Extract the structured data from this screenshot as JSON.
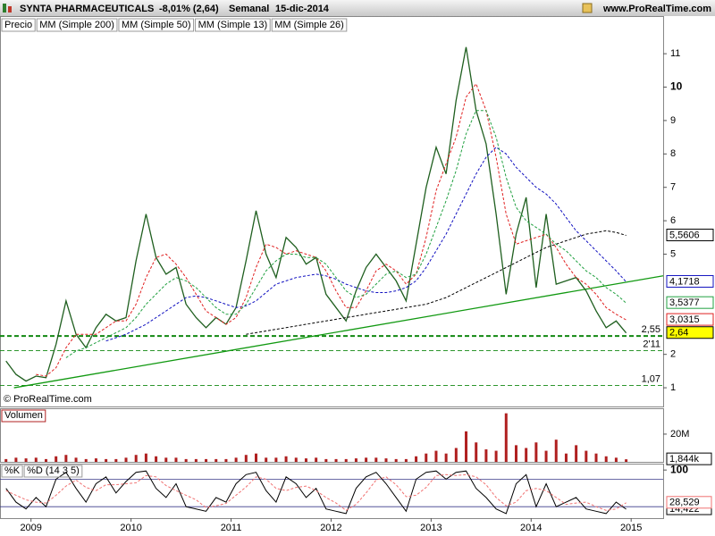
{
  "header": {
    "title": "SYNTA PHARMACEUTICALS",
    "change": "-8,01% (2,64)",
    "period": "Semanal",
    "date": "15-dic-2014",
    "site": "www.ProRealTime.com"
  },
  "chart_data": [
    {
      "type": "line",
      "watermark": "© ProRealTime.com",
      "x": [
        2008.75,
        2008.85,
        2008.95,
        2009.05,
        2009.15,
        2009.25,
        2009.35,
        2009.45,
        2009.55,
        2009.65,
        2009.75,
        2009.85,
        2009.95,
        2010.05,
        2010.15,
        2010.25,
        2010.35,
        2010.45,
        2010.55,
        2010.65,
        2010.75,
        2010.85,
        2010.95,
        2011.05,
        2011.15,
        2011.25,
        2011.35,
        2011.45,
        2011.55,
        2011.65,
        2011.75,
        2011.85,
        2011.95,
        2012.05,
        2012.15,
        2012.25,
        2012.35,
        2012.45,
        2012.55,
        2012.65,
        2012.75,
        2012.85,
        2012.95,
        2013.05,
        2013.15,
        2013.25,
        2013.35,
        2013.45,
        2013.55,
        2013.65,
        2013.75,
        2013.85,
        2013.95,
        2014.05,
        2014.15,
        2014.25,
        2014.35,
        2014.45,
        2014.55,
        2014.65,
        2014.75,
        2014.85,
        2014.95
      ],
      "series": [
        {
          "name": "Precio",
          "color": "#1f5f1f",
          "width": 1.3,
          "values": [
            1.8,
            1.4,
            1.2,
            1.35,
            1.3,
            2.3,
            3.6,
            2.6,
            2.2,
            2.8,
            3.2,
            3.0,
            3.1,
            4.8,
            6.2,
            4.9,
            4.4,
            4.6,
            3.5,
            3.1,
            2.8,
            3.1,
            2.9,
            3.4,
            4.8,
            6.3,
            5.0,
            4.3,
            5.5,
            5.2,
            4.7,
            4.9,
            3.8,
            3.4,
            3.0,
            3.9,
            4.6,
            5.0,
            4.6,
            4.2,
            3.6,
            5.3,
            7.0,
            8.2,
            7.4,
            9.6,
            11.2,
            9.3,
            8.3,
            6.2,
            3.8,
            5.6,
            6.7,
            4.0,
            6.2,
            4.1,
            4.2,
            4.3,
            3.9,
            3.3,
            2.8,
            3.0,
            2.64
          ]
        },
        {
          "name": "MM (Simple 200)",
          "color": "#000000",
          "dash": true,
          "values": [
            null,
            null,
            null,
            null,
            null,
            null,
            null,
            null,
            null,
            null,
            null,
            null,
            null,
            null,
            null,
            null,
            null,
            null,
            null,
            null,
            null,
            null,
            null,
            null,
            2.6,
            2.65,
            2.7,
            2.75,
            2.8,
            2.85,
            2.9,
            2.95,
            3.0,
            3.05,
            3.1,
            3.15,
            3.2,
            3.25,
            3.3,
            3.35,
            3.4,
            3.45,
            3.5,
            3.6,
            3.7,
            3.85,
            4.0,
            4.15,
            4.3,
            4.45,
            4.6,
            4.75,
            4.9,
            5.05,
            5.2,
            5.3,
            5.4,
            5.5,
            5.6,
            5.65,
            5.7,
            5.65,
            5.56
          ]
        },
        {
          "name": "MM (Simple 50)",
          "color": "#1010c0",
          "dash": true,
          "values": [
            null,
            null,
            null,
            null,
            null,
            null,
            null,
            null,
            null,
            null,
            2.4,
            2.5,
            2.6,
            2.75,
            2.9,
            3.1,
            3.3,
            3.5,
            3.7,
            3.75,
            3.7,
            3.6,
            3.5,
            3.4,
            3.45,
            3.6,
            3.85,
            4.1,
            4.2,
            4.3,
            4.35,
            4.4,
            4.35,
            4.25,
            4.1,
            4.0,
            3.9,
            3.85,
            3.85,
            3.9,
            4.0,
            4.2,
            4.6,
            5.1,
            5.6,
            6.2,
            6.8,
            7.4,
            7.9,
            8.2,
            8.0,
            7.6,
            7.3,
            7.0,
            6.8,
            6.5,
            6.1,
            5.7,
            5.4,
            5.1,
            4.8,
            4.5,
            4.17
          ]
        },
        {
          "name": "MM (Simple 13)",
          "color": "#e02020",
          "dash": true,
          "values": [
            null,
            null,
            null,
            1.4,
            1.35,
            1.6,
            2.2,
            2.6,
            2.6,
            2.6,
            2.8,
            3.0,
            3.0,
            3.5,
            4.3,
            4.9,
            5.0,
            4.7,
            4.3,
            3.8,
            3.3,
            3.1,
            2.9,
            3.1,
            3.7,
            4.6,
            5.3,
            5.2,
            5.0,
            5.1,
            5.0,
            4.9,
            4.5,
            3.9,
            3.4,
            3.4,
            3.9,
            4.5,
            4.7,
            4.5,
            4.1,
            4.4,
            5.5,
            6.9,
            7.7,
            8.5,
            9.7,
            10.1,
            9.3,
            7.9,
            6.2,
            5.3,
            5.4,
            5.5,
            5.6,
            5.2,
            4.7,
            4.3,
            4.1,
            3.8,
            3.4,
            3.2,
            3.0315
          ]
        },
        {
          "name": "MM (Simple 26)",
          "color": "#20a040",
          "dash": true,
          "values": [
            null,
            null,
            null,
            null,
            null,
            null,
            1.9,
            2.1,
            2.2,
            2.35,
            2.5,
            2.65,
            2.8,
            3.1,
            3.5,
            3.8,
            4.1,
            4.3,
            4.2,
            4.0,
            3.7,
            3.4,
            3.2,
            3.2,
            3.5,
            4.0,
            4.5,
            4.8,
            5.0,
            5.0,
            4.9,
            4.9,
            4.7,
            4.3,
            3.9,
            3.7,
            3.8,
            4.1,
            4.4,
            4.5,
            4.3,
            4.4,
            5.0,
            5.8,
            6.6,
            7.5,
            8.6,
            9.3,
            9.3,
            8.5,
            7.3,
            6.4,
            6.0,
            5.8,
            5.6,
            5.3,
            5.1,
            4.8,
            4.5,
            4.3,
            4.0,
            3.8,
            3.5377
          ]
        }
      ],
      "xlim": [
        2008.69,
        2015.32
      ],
      "ylim": [
        0.44,
        12.1
      ],
      "yticks": [
        1,
        2,
        5,
        6,
        7,
        8,
        9,
        10,
        11
      ],
      "trendline": {
        "color": "#119911",
        "x": [
          2008.83,
          2015.32
        ],
        "values": [
          1.0,
          4.35
        ]
      },
      "levels": [
        {
          "value": 2.55,
          "label": "2,55",
          "width": 2
        },
        {
          "value": 2.11,
          "label": "2'11",
          "width": 0.8
        },
        {
          "value": 1.07,
          "label": "1,07",
          "width": 0.8
        }
      ],
      "level_color": "#118811",
      "price_labels": [
        {
          "value": 5.5606,
          "label": "5,5606",
          "color": "#000000",
          "fill": "#ffffff"
        },
        {
          "value": 4.1718,
          "label": "4,1718",
          "color": "#1010c0",
          "fill": "#ffffff"
        },
        {
          "value": 3.5377,
          "label": "3,5377",
          "color": "#20a040",
          "fill": "#ffffff"
        },
        {
          "value": 3.0315,
          "label": "3,0315",
          "color": "#e02020",
          "fill": "#ffffff"
        },
        {
          "value": 2.64,
          "label": "2,64",
          "color": "#000000",
          "fill": "#ffff00"
        }
      ]
    },
    {
      "type": "bar",
      "title": "Volumen",
      "color": "#b02020",
      "x": [
        2008.75,
        2008.85,
        2008.95,
        2009.05,
        2009.15,
        2009.25,
        2009.35,
        2009.45,
        2009.55,
        2009.65,
        2009.75,
        2009.85,
        2009.95,
        2010.05,
        2010.15,
        2010.25,
        2010.35,
        2010.45,
        2010.55,
        2010.65,
        2010.75,
        2010.85,
        2010.95,
        2011.05,
        2011.15,
        2011.25,
        2011.35,
        2011.45,
        2011.55,
        2011.65,
        2011.75,
        2011.85,
        2011.95,
        2012.05,
        2012.15,
        2012.25,
        2012.35,
        2012.45,
        2012.55,
        2012.65,
        2012.75,
        2012.85,
        2012.95,
        2013.05,
        2013.15,
        2013.25,
        2013.35,
        2013.45,
        2013.55,
        2013.65,
        2013.75,
        2013.85,
        2013.95,
        2014.05,
        2014.15,
        2014.25,
        2014.35,
        2014.45,
        2014.55,
        2014.65,
        2014.75,
        2014.85,
        2014.95
      ],
      "values": [
        2,
        3,
        2.5,
        3,
        2,
        4,
        5,
        3,
        2,
        2.5,
        2,
        2,
        3,
        5,
        6,
        4,
        3,
        3,
        2,
        2,
        2,
        2,
        2,
        3,
        5,
        6,
        3,
        3,
        4,
        3,
        2.5,
        3,
        2,
        2,
        2,
        2.5,
        3,
        3,
        2.5,
        2,
        2,
        4,
        6,
        8,
        6,
        10,
        22,
        14,
        9,
        8,
        35,
        12,
        10,
        14,
        8,
        16,
        6,
        12,
        8,
        6,
        4,
        3,
        1.844
      ],
      "xlim": [
        2008.69,
        2015.32
      ],
      "ylim": [
        0,
        38
      ],
      "yticks": [
        {
          "value": 20,
          "label": "20M"
        }
      ],
      "last_label": {
        "value": 1.844,
        "label": "1,844k"
      }
    },
    {
      "type": "line",
      "x": [
        2008.75,
        2008.85,
        2008.95,
        2009.05,
        2009.15,
        2009.25,
        2009.35,
        2009.45,
        2009.55,
        2009.65,
        2009.75,
        2009.85,
        2009.95,
        2010.05,
        2010.15,
        2010.25,
        2010.35,
        2010.45,
        2010.55,
        2010.65,
        2010.75,
        2010.85,
        2010.95,
        2011.05,
        2011.15,
        2011.25,
        2011.35,
        2011.45,
        2011.55,
        2011.65,
        2011.75,
        2011.85,
        2011.95,
        2012.05,
        2012.15,
        2012.25,
        2012.35,
        2012.45,
        2012.55,
        2012.65,
        2012.75,
        2012.85,
        2012.95,
        2013.05,
        2013.15,
        2013.25,
        2013.35,
        2013.45,
        2013.55,
        2013.65,
        2013.75,
        2013.85,
        2013.95,
        2014.05,
        2014.15,
        2014.25,
        2014.35,
        2014.45,
        2014.55,
        2014.65,
        2014.75,
        2014.85,
        2014.95
      ],
      "series": [
        {
          "name": "%K",
          "color": "#000000",
          "values": [
            60,
            30,
            15,
            40,
            20,
            80,
            95,
            60,
            30,
            70,
            85,
            50,
            75,
            95,
            98,
            60,
            40,
            70,
            20,
            15,
            10,
            40,
            30,
            70,
            90,
            95,
            55,
            30,
            85,
            70,
            40,
            60,
            15,
            10,
            5,
            60,
            85,
            95,
            70,
            40,
            10,
            80,
            95,
            98,
            80,
            95,
            98,
            60,
            40,
            15,
            5,
            70,
            90,
            20,
            70,
            20,
            30,
            40,
            15,
            10,
            5,
            30,
            14.422
          ],
          "last_label": {
            "value": 14.422,
            "label": "14,422"
          }
        },
        {
          "name": "%D (14 3 5)",
          "color": "#f07070",
          "dash": true,
          "values": [
            55,
            45,
            35,
            30,
            28,
            45,
            65,
            78,
            62,
            55,
            68,
            68,
            70,
            72,
            88,
            85,
            66,
            55,
            45,
            35,
            18,
            22,
            27,
            45,
            63,
            85,
            80,
            60,
            55,
            62,
            65,
            55,
            40,
            28,
            12,
            25,
            50,
            78,
            85,
            68,
            42,
            45,
            62,
            88,
            90,
            88,
            90,
            85,
            68,
            40,
            22,
            30,
            55,
            60,
            55,
            40,
            25,
            28,
            30,
            20,
            12,
            15,
            28.529
          ],
          "last_label": {
            "value": 28.529,
            "label": "28,529"
          }
        }
      ],
      "xlim": [
        2008.69,
        2015.32
      ],
      "ylim": [
        -5,
        112
      ],
      "yticks": [
        100
      ],
      "levels": [
        80,
        20
      ],
      "level_color": "#3a3a8a",
      "xticks": [
        2009,
        2010,
        2011,
        2012,
        2013,
        2014,
        2015
      ]
    }
  ]
}
